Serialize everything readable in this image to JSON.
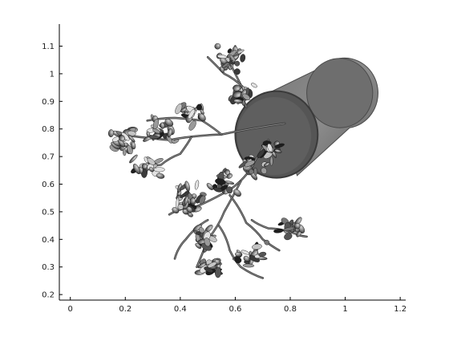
{
  "chart_data": {
    "type": "scatter",
    "title": "",
    "xlabel": "",
    "ylabel": "",
    "xlim": [
      -0.04,
      1.22
    ],
    "ylim": [
      0.18,
      1.18
    ],
    "grid": false,
    "box": "left-bottom",
    "x_ticks": [
      0,
      0.2,
      0.4,
      0.6,
      0.8,
      1,
      1.2
    ],
    "x_tick_labels": [
      "0",
      "0.2",
      "0.4",
      "0.6",
      "0.8",
      "1",
      "1.2"
    ],
    "y_ticks": [
      0.2,
      0.3,
      0.4,
      0.5,
      0.6,
      0.7,
      0.8,
      0.9,
      1,
      1.1
    ],
    "y_tick_labels": [
      "0.2",
      "0.3",
      "0.4",
      "0.5",
      "0.6",
      "0.7",
      "0.8",
      "0.9",
      "1",
      "1.1"
    ],
    "rendered_object": {
      "description_icon": "potted-plant-render",
      "pot": {
        "rim_center": [
          0.75,
          0.78
        ],
        "back_center": [
          0.98,
          0.93
        ],
        "rim_radius": 0.15,
        "back_radius": 0.12,
        "color": "#5a5a5a"
      },
      "branches": [
        {
          "points": [
            [
              0.78,
              0.82
            ],
            [
              0.55,
              0.78
            ],
            [
              0.36,
              0.76
            ],
            [
              0.18,
              0.78
            ]
          ]
        },
        {
          "points": [
            [
              0.55,
              0.78
            ],
            [
              0.48,
              0.83
            ],
            [
              0.38,
              0.84
            ],
            [
              0.28,
              0.83
            ]
          ]
        },
        {
          "points": [
            [
              0.44,
              0.77
            ],
            [
              0.4,
              0.71
            ],
            [
              0.33,
              0.67
            ],
            [
              0.24,
              0.65
            ]
          ]
        },
        {
          "points": [
            [
              0.72,
              0.76
            ],
            [
              0.66,
              0.66
            ],
            [
              0.58,
              0.58
            ],
            [
              0.46,
              0.52
            ],
            [
              0.36,
              0.49
            ]
          ]
        },
        {
          "points": [
            [
              0.62,
              0.61
            ],
            [
              0.56,
              0.5
            ],
            [
              0.5,
              0.4
            ],
            [
              0.46,
              0.3
            ]
          ]
        },
        {
          "points": [
            [
              0.58,
              0.56
            ],
            [
              0.64,
              0.46
            ],
            [
              0.7,
              0.4
            ],
            [
              0.76,
              0.36
            ]
          ]
        },
        {
          "points": [
            [
              0.66,
              0.47
            ],
            [
              0.72,
              0.44
            ],
            [
              0.82,
              0.42
            ],
            [
              0.86,
              0.41
            ]
          ]
        },
        {
          "points": [
            [
              0.54,
              0.45
            ],
            [
              0.58,
              0.36
            ],
            [
              0.62,
              0.3
            ],
            [
              0.7,
              0.26
            ]
          ]
        },
        {
          "points": [
            [
              0.64,
              0.88
            ],
            [
              0.62,
              0.96
            ],
            [
              0.58,
              1.04
            ],
            [
              0.6,
              1.1
            ]
          ]
        },
        {
          "points": [
            [
              0.63,
              0.95
            ],
            [
              0.56,
              1.0
            ],
            [
              0.5,
              1.06
            ]
          ]
        },
        {
          "points": [
            [
              0.5,
              0.47
            ],
            [
              0.42,
              0.4
            ],
            [
              0.38,
              0.33
            ]
          ]
        }
      ],
      "leaf_clusters": [
        {
          "center": [
            0.2,
            0.76
          ],
          "spread": [
            0.06,
            0.06
          ],
          "count": 26
        },
        {
          "center": [
            0.32,
            0.8
          ],
          "spread": [
            0.07,
            0.06
          ],
          "count": 26
        },
        {
          "center": [
            0.44,
            0.86
          ],
          "spread": [
            0.06,
            0.05
          ],
          "count": 20
        },
        {
          "center": [
            0.58,
            1.05
          ],
          "spread": [
            0.06,
            0.07
          ],
          "count": 32
        },
        {
          "center": [
            0.62,
            0.93
          ],
          "spread": [
            0.05,
            0.05
          ],
          "count": 22
        },
        {
          "center": [
            0.28,
            0.66
          ],
          "spread": [
            0.07,
            0.05
          ],
          "count": 24
        },
        {
          "center": [
            0.42,
            0.55
          ],
          "spread": [
            0.08,
            0.06
          ],
          "count": 34
        },
        {
          "center": [
            0.56,
            0.6
          ],
          "spread": [
            0.06,
            0.05
          ],
          "count": 22
        },
        {
          "center": [
            0.66,
            0.66
          ],
          "spread": [
            0.05,
            0.05
          ],
          "count": 18
        },
        {
          "center": [
            0.48,
            0.4
          ],
          "spread": [
            0.06,
            0.05
          ],
          "count": 24
        },
        {
          "center": [
            0.5,
            0.3
          ],
          "spread": [
            0.06,
            0.04
          ],
          "count": 20
        },
        {
          "center": [
            0.66,
            0.34
          ],
          "spread": [
            0.06,
            0.05
          ],
          "count": 22
        },
        {
          "center": [
            0.8,
            0.44
          ],
          "spread": [
            0.05,
            0.04
          ],
          "count": 16
        },
        {
          "center": [
            0.73,
            0.72
          ],
          "spread": [
            0.05,
            0.05
          ],
          "count": 16
        }
      ]
    }
  }
}
